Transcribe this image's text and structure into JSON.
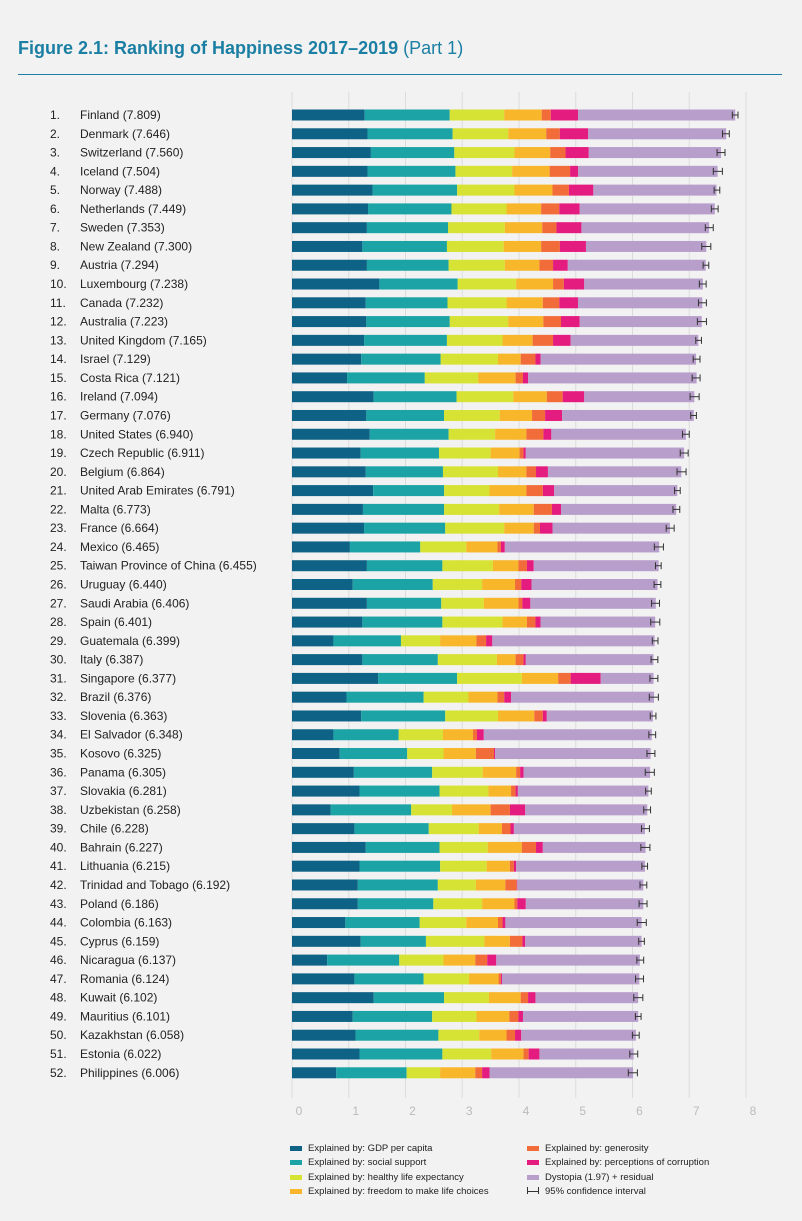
{
  "title": {
    "bold": "Figure 2.1: Ranking of Happiness 2017–2019",
    "normal": "(Part 1)"
  },
  "colors": {
    "title": "#1b7fa3",
    "gdp": "#0e6285",
    "social": "#1ba3a5",
    "health": "#d6e234",
    "freedom": "#f8b62b",
    "generosity": "#f26c3a",
    "corruption": "#e51c7f",
    "dystopia": "#b79ecb"
  },
  "legend": [
    {
      "key": "gdp",
      "label": "Explained by: GDP per capita"
    },
    {
      "key": "social",
      "label": "Explained by: social support"
    },
    {
      "key": "health",
      "label": "Explained by: healthy life expectancy"
    },
    {
      "key": "freedom",
      "label": "Explained by: freedom to make life choices"
    },
    {
      "key": "generosity",
      "label": "Explained by: generosity"
    },
    {
      "key": "corruption",
      "label": "Explained by: perceptions of corruption"
    },
    {
      "key": "dystopia",
      "label": "Dystopia (1.97) + residual"
    },
    {
      "key": "ci",
      "label": "95% confidence interval"
    }
  ],
  "chart_data": {
    "type": "bar",
    "orientation": "horizontal",
    "stacked": true,
    "xlim": [
      0,
      8
    ],
    "xticks": [
      "0",
      "1",
      "2",
      "3",
      "4",
      "5",
      "6",
      "7",
      "8"
    ],
    "components": [
      "gdp",
      "social",
      "health",
      "freedom",
      "generosity",
      "corruption",
      "dystopia"
    ],
    "rows": [
      {
        "rank": "1.",
        "label": "Finland (7.809)",
        "score": 7.809,
        "parts": [
          1.28,
          1.5,
          0.96,
          0.66,
          0.16,
          0.48,
          2.77
        ]
      },
      {
        "rank": "2.",
        "label": "Denmark (7.646)",
        "score": 7.646,
        "parts": [
          1.33,
          1.5,
          0.98,
          0.67,
          0.24,
          0.5,
          2.43
        ]
      },
      {
        "rank": "3.",
        "label": "Switzerland (7.560)",
        "score": 7.56,
        "parts": [
          1.39,
          1.47,
          1.06,
          0.63,
          0.27,
          0.41,
          2.33
        ]
      },
      {
        "rank": "4.",
        "label": "Iceland (7.504)",
        "score": 7.504,
        "parts": [
          1.33,
          1.55,
          1.0,
          0.66,
          0.36,
          0.14,
          2.46
        ]
      },
      {
        "rank": "5.",
        "label": "Norway (7.488)",
        "score": 7.488,
        "parts": [
          1.42,
          1.49,
          1.01,
          0.67,
          0.29,
          0.43,
          2.17
        ]
      },
      {
        "rank": "6.",
        "label": "Netherlands (7.449)",
        "score": 7.449,
        "parts": [
          1.34,
          1.47,
          0.97,
          0.61,
          0.32,
          0.36,
          2.38
        ]
      },
      {
        "rank": "7.",
        "label": "Sweden (7.353)",
        "score": 7.353,
        "parts": [
          1.32,
          1.43,
          1.0,
          0.66,
          0.25,
          0.44,
          2.25
        ]
      },
      {
        "rank": "8.",
        "label": "New Zealand (7.300)",
        "score": 7.3,
        "parts": [
          1.24,
          1.49,
          1.0,
          0.66,
          0.33,
          0.46,
          2.12
        ]
      },
      {
        "rank": "9.",
        "label": "Austria (7.294)",
        "score": 7.294,
        "parts": [
          1.32,
          1.44,
          0.99,
          0.61,
          0.24,
          0.26,
          2.43
        ]
      },
      {
        "rank": "10.",
        "label": "Luxembourg (7.238)",
        "score": 7.238,
        "parts": [
          1.54,
          1.38,
          1.03,
          0.65,
          0.19,
          0.36,
          2.09
        ]
      },
      {
        "rank": "11.",
        "label": "Canada (7.232)",
        "score": 7.232,
        "parts": [
          1.3,
          1.44,
          1.04,
          0.64,
          0.29,
          0.33,
          2.19
        ]
      },
      {
        "rank": "12.",
        "label": "Australia (7.223)",
        "score": 7.223,
        "parts": [
          1.31,
          1.47,
          1.03,
          0.62,
          0.31,
          0.33,
          2.15
        ]
      },
      {
        "rank": "13.",
        "label": "United Kingdom (7.165)",
        "score": 7.165,
        "parts": [
          1.27,
          1.46,
          0.98,
          0.53,
          0.36,
          0.31,
          2.25
        ]
      },
      {
        "rank": "14.",
        "label": "Israel (7.129)",
        "score": 7.129,
        "parts": [
          1.22,
          1.4,
          1.01,
          0.4,
          0.26,
          0.09,
          2.74
        ]
      },
      {
        "rank": "15.",
        "label": "Costa Rica (7.121)",
        "score": 7.121,
        "parts": [
          0.97,
          1.37,
          0.94,
          0.66,
          0.13,
          0.09,
          2.97
        ]
      },
      {
        "rank": "16.",
        "label": "Ireland (7.094)",
        "score": 7.094,
        "parts": [
          1.44,
          1.46,
          1.0,
          0.59,
          0.28,
          0.38,
          1.94
        ]
      },
      {
        "rank": "17.",
        "label": "Germany (7.076)",
        "score": 7.076,
        "parts": [
          1.31,
          1.37,
          0.98,
          0.57,
          0.23,
          0.3,
          2.32
        ]
      },
      {
        "rank": "18.",
        "label": "United States (6.940)",
        "score": 6.94,
        "parts": [
          1.37,
          1.39,
          0.82,
          0.55,
          0.3,
          0.14,
          2.37
        ]
      },
      {
        "rank": "19.",
        "label": "Czech Republic (6.911)",
        "score": 6.911,
        "parts": [
          1.21,
          1.38,
          0.91,
          0.51,
          0.07,
          0.04,
          2.79
        ]
      },
      {
        "rank": "20.",
        "label": "Belgium (6.864)",
        "score": 6.864,
        "parts": [
          1.3,
          1.36,
          0.97,
          0.5,
          0.17,
          0.21,
          2.35
        ]
      },
      {
        "rank": "21.",
        "label": "United Arab Emirates (6.791)",
        "score": 6.791,
        "parts": [
          1.43,
          1.25,
          0.8,
          0.65,
          0.29,
          0.2,
          2.17
        ]
      },
      {
        "rank": "22.",
        "label": "Malta (6.773)",
        "score": 6.773,
        "parts": [
          1.25,
          1.43,
          0.97,
          0.61,
          0.32,
          0.16,
          2.03
        ]
      },
      {
        "rank": "23.",
        "label": "France (6.664)",
        "score": 6.664,
        "parts": [
          1.27,
          1.43,
          1.04,
          0.52,
          0.11,
          0.22,
          2.07
        ]
      },
      {
        "rank": "24.",
        "label": "Mexico (6.465)",
        "score": 6.465,
        "parts": [
          1.02,
          1.24,
          0.81,
          0.55,
          0.06,
          0.07,
          2.72
        ]
      },
      {
        "rank": "25.",
        "label": "Taiwan Province of China (6.455)",
        "score": 6.455,
        "parts": [
          1.32,
          1.33,
          0.89,
          0.45,
          0.15,
          0.12,
          2.2
        ]
      },
      {
        "rank": "26.",
        "label": "Uruguay (6.440)",
        "score": 6.44,
        "parts": [
          1.07,
          1.41,
          0.87,
          0.58,
          0.11,
          0.18,
          2.22
        ]
      },
      {
        "rank": "27.",
        "label": "Saudi Arabia (6.406)",
        "score": 6.406,
        "parts": [
          1.32,
          1.31,
          0.75,
          0.61,
          0.07,
          0.14,
          2.21
        ]
      },
      {
        "rank": "28.",
        "label": "Spain (6.401)",
        "score": 6.401,
        "parts": [
          1.24,
          1.41,
          1.06,
          0.43,
          0.15,
          0.09,
          2.02
        ]
      },
      {
        "rank": "29.",
        "label": "Guatemala (6.399)",
        "score": 6.399,
        "parts": [
          0.73,
          1.19,
          0.69,
          0.64,
          0.17,
          0.11,
          2.86
        ]
      },
      {
        "rank": "30.",
        "label": "Italy (6.387)",
        "score": 6.387,
        "parts": [
          1.24,
          1.33,
          1.04,
          0.33,
          0.14,
          0.04,
          2.25
        ]
      },
      {
        "rank": "31.",
        "label": "Singapore (6.377)",
        "score": 6.377,
        "parts": [
          1.52,
          1.39,
          1.14,
          0.64,
          0.22,
          0.53,
          0.93
        ]
      },
      {
        "rank": "32.",
        "label": "Brazil (6.376)",
        "score": 6.376,
        "parts": [
          0.96,
          1.36,
          0.79,
          0.51,
          0.12,
          0.12,
          2.52
        ]
      },
      {
        "rank": "33.",
        "label": "Slovenia (6.363)",
        "score": 6.363,
        "parts": [
          1.22,
          1.48,
          0.93,
          0.64,
          0.15,
          0.07,
          1.87
        ]
      },
      {
        "rank": "34.",
        "label": "El Salvador (6.348)",
        "score": 6.348,
        "parts": [
          0.73,
          1.15,
          0.78,
          0.53,
          0.07,
          0.12,
          2.96
        ]
      },
      {
        "rank": "35.",
        "label": "Kosovo (6.325)",
        "score": 6.325,
        "parts": [
          0.84,
          1.19,
          0.64,
          0.57,
          0.32,
          0.02,
          2.74
        ]
      },
      {
        "rank": "36.",
        "label": "Panama (6.305)",
        "score": 6.305,
        "parts": [
          1.09,
          1.38,
          0.89,
          0.59,
          0.07,
          0.06,
          2.23
        ]
      },
      {
        "rank": "37.",
        "label": "Slovakia (6.281)",
        "score": 6.281,
        "parts": [
          1.19,
          1.41,
          0.86,
          0.4,
          0.08,
          0.04,
          2.3
        ]
      },
      {
        "rank": "38.",
        "label": "Uzbekistan (6.258)",
        "score": 6.258,
        "parts": [
          0.68,
          1.42,
          0.72,
          0.68,
          0.34,
          0.27,
          2.15
        ]
      },
      {
        "rank": "39.",
        "label": "Chile (6.228)",
        "score": 6.228,
        "parts": [
          1.1,
          1.31,
          0.88,
          0.41,
          0.15,
          0.06,
          2.31
        ]
      },
      {
        "rank": "40.",
        "label": "Bahrain (6.227)",
        "score": 6.227,
        "parts": [
          1.3,
          1.3,
          0.85,
          0.6,
          0.25,
          0.12,
          1.81
        ]
      },
      {
        "rank": "41.",
        "label": "Lithuania (6.215)",
        "score": 6.215,
        "parts": [
          1.19,
          1.42,
          0.82,
          0.41,
          0.07,
          0.04,
          2.27
        ]
      },
      {
        "rank": "42.",
        "label": "Trinidad and Tobago (6.192)",
        "score": 6.192,
        "parts": [
          1.16,
          1.41,
          0.67,
          0.52,
          0.2,
          0.01,
          2.22
        ]
      },
      {
        "rank": "43.",
        "label": "Poland (6.186)",
        "score": 6.186,
        "parts": [
          1.16,
          1.33,
          0.86,
          0.57,
          0.05,
          0.15,
          2.07
        ]
      },
      {
        "rank": "44.",
        "label": "Colombia (6.163)",
        "score": 6.163,
        "parts": [
          0.94,
          1.31,
          0.82,
          0.56,
          0.08,
          0.05,
          2.4
        ]
      },
      {
        "rank": "45.",
        "label": "Cyprus (6.159)",
        "score": 6.159,
        "parts": [
          1.21,
          1.15,
          1.03,
          0.45,
          0.22,
          0.05,
          2.05
        ]
      },
      {
        "rank": "46.",
        "label": "Nicaragua (6.137)",
        "score": 6.137,
        "parts": [
          0.62,
          1.27,
          0.78,
          0.56,
          0.21,
          0.16,
          2.53
        ]
      },
      {
        "rank": "47.",
        "label": "Romania (6.124)",
        "score": 6.124,
        "parts": [
          1.1,
          1.22,
          0.8,
          0.52,
          0.04,
          0.02,
          2.42
        ]
      },
      {
        "rank": "48.",
        "label": "Kuwait (6.102)",
        "score": 6.102,
        "parts": [
          1.44,
          1.24,
          0.79,
          0.56,
          0.13,
          0.13,
          1.81
        ]
      },
      {
        "rank": "49.",
        "label": "Mauritius (6.101)",
        "score": 6.101,
        "parts": [
          1.07,
          1.4,
          0.78,
          0.58,
          0.16,
          0.08,
          2.03
        ]
      },
      {
        "rank": "50.",
        "label": "Kazakhstan (6.058)",
        "score": 6.058,
        "parts": [
          1.12,
          1.46,
          0.72,
          0.48,
          0.15,
          0.11,
          2.02
        ]
      },
      {
        "rank": "51.",
        "label": "Estonia (6.022)",
        "score": 6.022,
        "parts": [
          1.19,
          1.46,
          0.86,
          0.57,
          0.09,
          0.19,
          1.66
        ]
      },
      {
        "rank": "52.",
        "label": "Philippines (6.006)",
        "score": 6.006,
        "parts": [
          0.78,
          1.24,
          0.59,
          0.62,
          0.12,
          0.13,
          2.53
        ]
      }
    ]
  }
}
